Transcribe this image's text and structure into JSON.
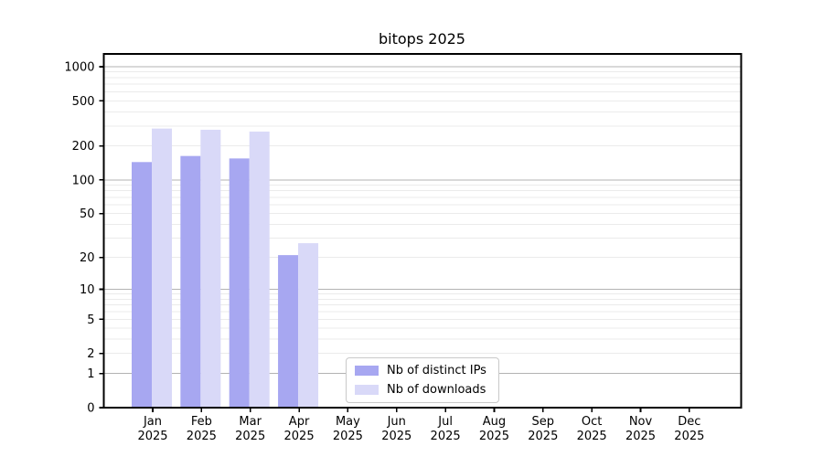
{
  "chart_data": {
    "type": "bar",
    "title": "bitops 2025",
    "categories": [
      "Jan 2025",
      "Feb 2025",
      "Mar 2025",
      "Apr 2025",
      "May 2025",
      "Jun 2025",
      "Jul 2025",
      "Aug 2025",
      "Sep 2025",
      "Oct 2025",
      "Nov 2025",
      "Dec 2025"
    ],
    "series": [
      {
        "name": "Nb of distinct IPs",
        "color": "#a7a7f1",
        "values": [
          144,
          163,
          155,
          21,
          0,
          0,
          0,
          0,
          0,
          0,
          0,
          0
        ]
      },
      {
        "name": "Nb of downloads",
        "color": "#d9d9f8",
        "values": [
          285,
          278,
          268,
          27,
          0,
          0,
          0,
          0,
          0,
          0,
          0,
          0
        ]
      }
    ],
    "xlabel": "",
    "ylabel": "",
    "yscale": "log1p",
    "yticks": [
      0,
      1,
      2,
      5,
      10,
      20,
      50,
      100,
      200,
      500,
      1000
    ],
    "ylim": [
      0,
      1300
    ],
    "grid": {
      "major_values": [
        1,
        10,
        100,
        1000
      ],
      "minor_multiples": [
        2,
        3,
        4,
        5,
        6,
        7,
        8,
        9
      ],
      "major_color": "#b3b3b3",
      "minor_color": "#ebebeb"
    },
    "legend": {
      "position": "inside-bottom-center"
    },
    "axis_color": "#000000",
    "background_color": "#ffffff"
  }
}
